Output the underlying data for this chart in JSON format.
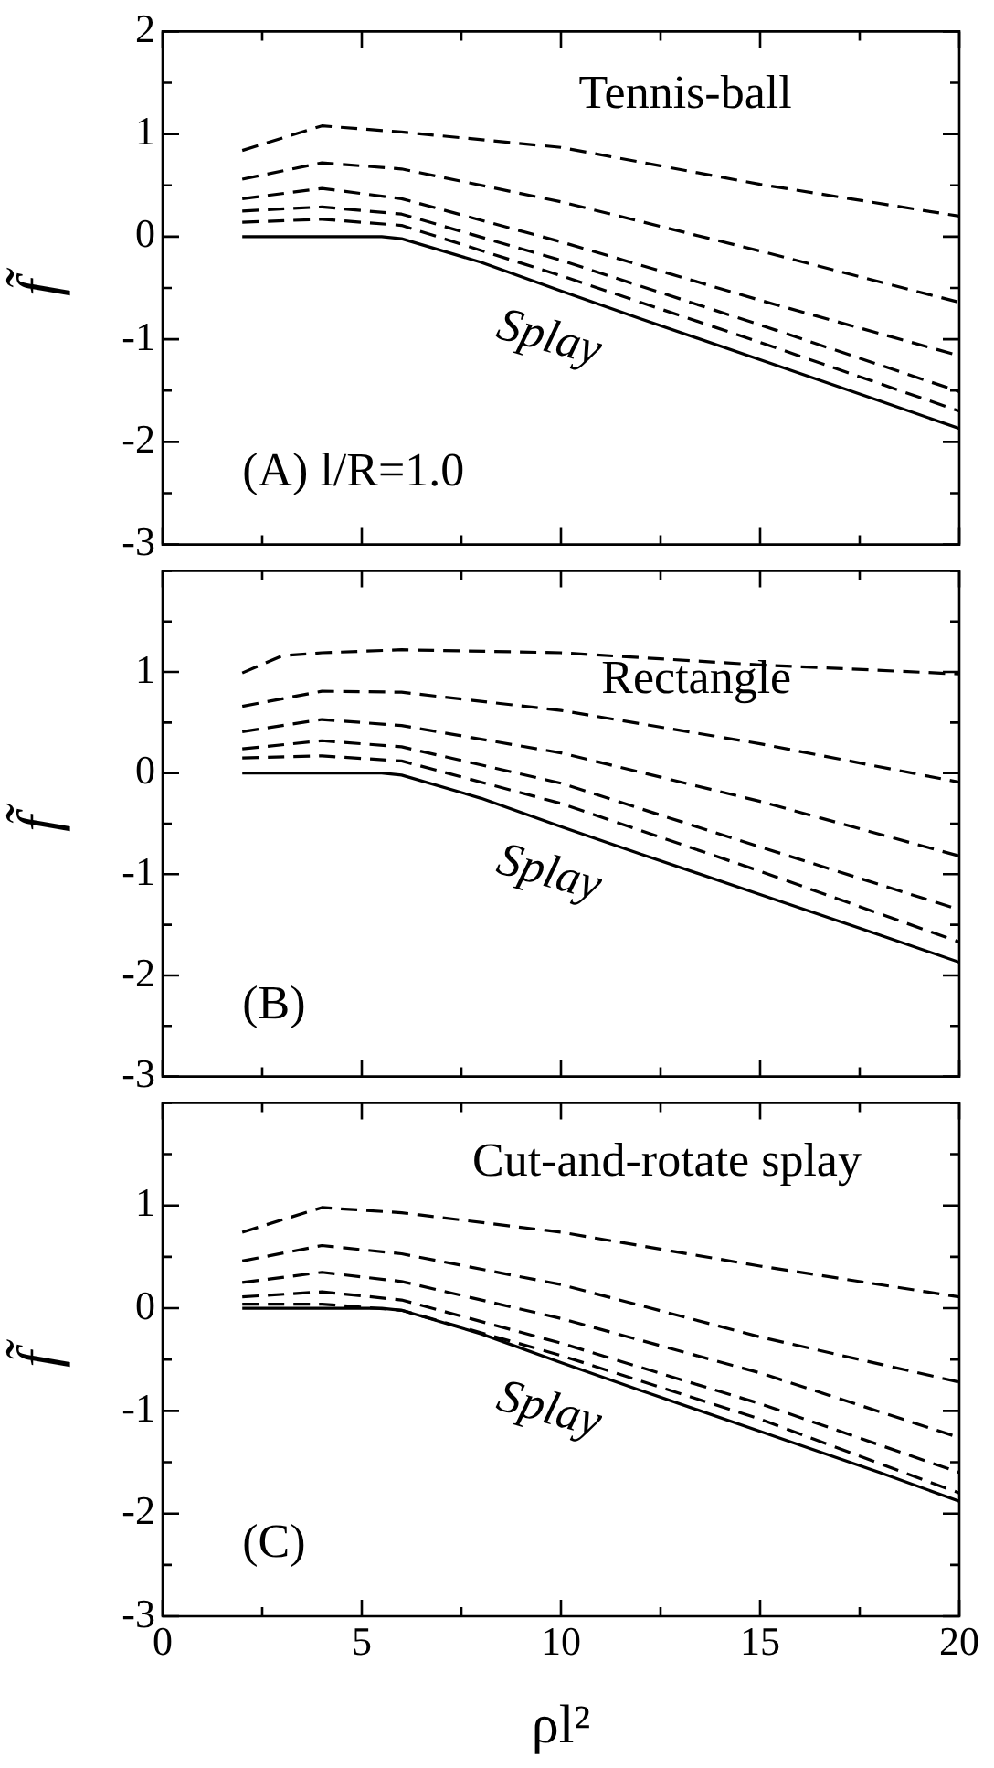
{
  "chart_data": [
    {
      "type": "line",
      "annotations": [
        "Tennis-ball",
        "(A) l/R=1.0"
      ],
      "ylabel": "f̃",
      "x": [
        2,
        4,
        6,
        10,
        15,
        20
      ],
      "series": [
        {
          "color": "#000000",
          "line_style": "dashed",
          "values": [
            0.84,
            1.08,
            1.02,
            0.87,
            0.51,
            0.2
          ]
        },
        {
          "color": "#000000",
          "line_style": "dashed",
          "values": [
            0.56,
            0.72,
            0.66,
            0.34,
            -0.14,
            -0.64
          ]
        },
        {
          "color": "#000000",
          "line_style": "dashed",
          "values": [
            0.37,
            0.47,
            0.37,
            -0.05,
            -0.62,
            -1.16
          ]
        },
        {
          "color": "#000000",
          "line_style": "dashed",
          "values": [
            0.25,
            0.29,
            0.22,
            -0.23,
            -0.86,
            -1.51
          ]
        },
        {
          "color": "#000000",
          "line_style": "dashed",
          "values": [
            0.14,
            0.17,
            0.11,
            -0.38,
            -1.03,
            -1.7
          ]
        },
        {
          "name": "Splay",
          "color": "#000000",
          "line_style": "solid",
          "x": [
            2,
            5.5,
            6,
            8,
            10,
            12,
            15,
            18,
            20
          ],
          "values": [
            0,
            0,
            -0.02,
            -0.25,
            -0.53,
            -0.8,
            -1.2,
            -1.6,
            -1.87
          ]
        }
      ],
      "xlim": [
        0,
        20
      ],
      "xticks": [
        0,
        {
          "value": 2.5,
          "label": null
        },
        5,
        {
          "value": 7.5,
          "label": null
        },
        10,
        {
          "value": 12.5,
          "label": null
        },
        15,
        {
          "value": 17.5,
          "label": null
        },
        20
      ],
      "ylim": [
        -3,
        2
      ],
      "yticks": [
        -3,
        {
          "value": -2.5,
          "label": null
        },
        -2,
        {
          "value": -1.5,
          "label": null
        },
        -1,
        {
          "value": -0.5,
          "label": null
        },
        0,
        {
          "value": 0.5,
          "label": null
        },
        1,
        {
          "value": 1.5,
          "label": null
        },
        2
      ],
      "tick_labels": "y",
      "grid": false,
      "legend": false,
      "marker": "none"
    },
    {
      "type": "line",
      "annotations": [
        "Rectangle",
        "(B)"
      ],
      "ylabel": "f̃",
      "x": [
        2,
        4,
        6,
        10,
        15,
        20
      ],
      "series": [
        {
          "color": "#000000",
          "line_style": "dashed",
          "x": [
            2,
            3,
            4,
            6,
            10,
            15,
            20
          ],
          "values": [
            0.99,
            1.16,
            1.19,
            1.22,
            1.19,
            1.07,
            0.98
          ]
        },
        {
          "color": "#000000",
          "line_style": "dashed",
          "values": [
            0.66,
            0.81,
            0.8,
            0.62,
            0.29,
            -0.09
          ]
        },
        {
          "color": "#000000",
          "line_style": "dashed",
          "values": [
            0.41,
            0.53,
            0.47,
            0.2,
            -0.28,
            -0.82
          ]
        },
        {
          "color": "#000000",
          "line_style": "dashed",
          "values": [
            0.24,
            0.32,
            0.26,
            -0.1,
            -0.73,
            -1.35
          ]
        },
        {
          "color": "#000000",
          "line_style": "dashed",
          "values": [
            0.15,
            0.17,
            0.12,
            -0.3,
            -0.97,
            -1.67
          ]
        },
        {
          "name": "Splay",
          "color": "#000000",
          "line_style": "solid",
          "x": [
            2,
            5.5,
            6,
            8,
            10,
            12,
            15,
            18,
            20
          ],
          "values": [
            0,
            0,
            -0.02,
            -0.25,
            -0.53,
            -0.8,
            -1.2,
            -1.6,
            -1.87
          ]
        }
      ],
      "xlim": [
        0,
        20
      ],
      "xticks": [
        0,
        {
          "value": 2.5,
          "label": null
        },
        5,
        {
          "value": 7.5,
          "label": null
        },
        10,
        {
          "value": 12.5,
          "label": null
        },
        15,
        {
          "value": 17.5,
          "label": null
        },
        20
      ],
      "ylim": [
        -3,
        2
      ],
      "yticks": [
        -3,
        {
          "value": -2.5,
          "label": null
        },
        -2,
        {
          "value": -1.5,
          "label": null
        },
        -1,
        {
          "value": -0.5,
          "label": null
        },
        0,
        {
          "value": 0.5,
          "label": null
        },
        1,
        {
          "value": 1.5,
          "label": null
        },
        {
          "value": 2,
          "label": null
        }
      ],
      "tick_labels": "y",
      "grid": false,
      "legend": false,
      "marker": "none"
    },
    {
      "type": "line",
      "annotations": [
        "Cut-and-rotate splay",
        "(C)"
      ],
      "xlabel": "ρl²",
      "ylabel": "f̃",
      "x": [
        2,
        4,
        6,
        10,
        15,
        20
      ],
      "series": [
        {
          "color": "#000000",
          "line_style": "dashed",
          "values": [
            0.74,
            0.98,
            0.93,
            0.74,
            0.41,
            0.11
          ]
        },
        {
          "color": "#000000",
          "line_style": "dashed",
          "values": [
            0.46,
            0.61,
            0.53,
            0.23,
            -0.28,
            -0.72
          ]
        },
        {
          "color": "#000000",
          "line_style": "dashed",
          "values": [
            0.25,
            0.35,
            0.26,
            -0.1,
            -0.63,
            -1.26
          ]
        },
        {
          "color": "#000000",
          "line_style": "dashed",
          "values": [
            0.11,
            0.16,
            0.08,
            -0.34,
            -0.93,
            -1.6
          ]
        },
        {
          "color": "#000000",
          "line_style": "dashed",
          "values": [
            0.04,
            0.04,
            -0.02,
            -0.46,
            -1.08,
            -1.8
          ]
        },
        {
          "name": "Splay",
          "color": "#000000",
          "line_style": "solid",
          "x": [
            2,
            5.5,
            6,
            8,
            10,
            12,
            15,
            18,
            20
          ],
          "values": [
            0,
            0,
            -0.02,
            -0.25,
            -0.53,
            -0.8,
            -1.2,
            -1.6,
            -1.88
          ]
        }
      ],
      "xlim": [
        0,
        20
      ],
      "xticks": [
        0,
        {
          "value": 2.5,
          "label": null
        },
        5,
        {
          "value": 7.5,
          "label": null
        },
        10,
        {
          "value": 12.5,
          "label": null
        },
        15,
        {
          "value": 17.5,
          "label": null
        },
        20
      ],
      "ylim": [
        -3,
        2
      ],
      "yticks": [
        -3,
        {
          "value": -2.5,
          "label": null
        },
        -2,
        {
          "value": -1.5,
          "label": null
        },
        -1,
        {
          "value": -0.5,
          "label": null
        },
        0,
        {
          "value": 0.5,
          "label": null
        },
        1,
        {
          "value": 1.5,
          "label": null
        },
        {
          "value": 2,
          "label": null
        }
      ],
      "grid": false,
      "legend": false,
      "marker": "none"
    }
  ]
}
